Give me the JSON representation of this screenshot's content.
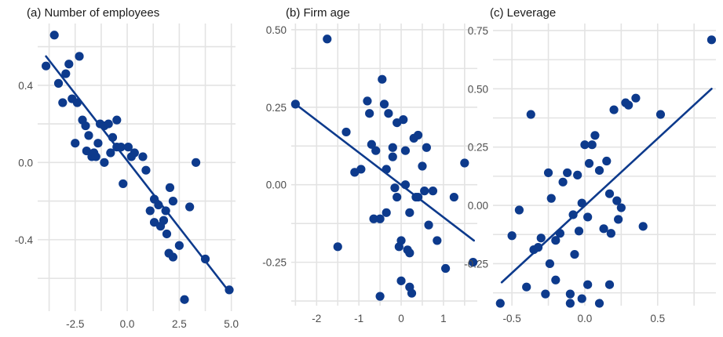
{
  "colors": {
    "point": "#0d3a8c",
    "line": "#0d3a8c",
    "grid": "#e3e3e3",
    "text": "#4d4d4d"
  },
  "chart_data": [
    {
      "type": "scatter",
      "title": "(a) Number of employees",
      "xlabel": "",
      "ylabel": "",
      "xlim": [
        -4.3,
        5.2
      ],
      "ylim": [
        -0.77,
        0.72
      ],
      "xticks": [
        -2.5,
        0.0,
        2.5,
        5.0
      ],
      "xtick_labels": [
        "-2.5",
        "0.0",
        "2.5",
        "5.0"
      ],
      "yticks": [
        0.4,
        0.0,
        -0.4
      ],
      "ytick_labels": [
        "0.4",
        "0.0",
        "-0.4"
      ],
      "grid": true,
      "trend_line": {
        "x": [
          -3.9,
          4.9
        ],
        "y": [
          0.55,
          -0.67
        ]
      },
      "points": [
        {
          "x": -3.9,
          "y": 0.5
        },
        {
          "x": -3.5,
          "y": 0.66
        },
        {
          "x": -3.3,
          "y": 0.41
        },
        {
          "x": -3.1,
          "y": 0.31
        },
        {
          "x": -2.95,
          "y": 0.46
        },
        {
          "x": -2.8,
          "y": 0.51
        },
        {
          "x": -2.65,
          "y": 0.33
        },
        {
          "x": -2.5,
          "y": 0.1
        },
        {
          "x": -2.4,
          "y": 0.31
        },
        {
          "x": -2.3,
          "y": 0.55
        },
        {
          "x": -2.15,
          "y": 0.22
        },
        {
          "x": -2.0,
          "y": 0.19
        },
        {
          "x": -1.95,
          "y": 0.06
        },
        {
          "x": -1.85,
          "y": 0.14
        },
        {
          "x": -1.7,
          "y": 0.03
        },
        {
          "x": -1.6,
          "y": 0.05
        },
        {
          "x": -1.5,
          "y": 0.03
        },
        {
          "x": -1.4,
          "y": 0.1
        },
        {
          "x": -1.3,
          "y": 0.2
        },
        {
          "x": -1.1,
          "y": 0.19
        },
        {
          "x": -1.1,
          "y": 0.0
        },
        {
          "x": -0.9,
          "y": 0.2
        },
        {
          "x": -0.8,
          "y": 0.05
        },
        {
          "x": -0.7,
          "y": 0.13
        },
        {
          "x": -0.5,
          "y": 0.22
        },
        {
          "x": -0.5,
          "y": 0.08
        },
        {
          "x": -0.3,
          "y": 0.08
        },
        {
          "x": -0.2,
          "y": -0.11
        },
        {
          "x": 0.05,
          "y": 0.08
        },
        {
          "x": 0.2,
          "y": 0.03
        },
        {
          "x": 0.35,
          "y": 0.05
        },
        {
          "x": 0.75,
          "y": 0.03
        },
        {
          "x": 0.9,
          "y": -0.04
        },
        {
          "x": 1.1,
          "y": -0.25
        },
        {
          "x": 1.3,
          "y": -0.19
        },
        {
          "x": 1.3,
          "y": -0.31
        },
        {
          "x": 1.5,
          "y": -0.22
        },
        {
          "x": 1.6,
          "y": -0.33
        },
        {
          "x": 1.75,
          "y": -0.3
        },
        {
          "x": 1.85,
          "y": -0.25
        },
        {
          "x": 1.9,
          "y": -0.37
        },
        {
          "x": 2.05,
          "y": -0.13
        },
        {
          "x": 2.0,
          "y": -0.47
        },
        {
          "x": 2.2,
          "y": -0.2
        },
        {
          "x": 2.2,
          "y": -0.49
        },
        {
          "x": 2.5,
          "y": -0.43
        },
        {
          "x": 2.75,
          "y": -0.71
        },
        {
          "x": 3.0,
          "y": -0.23
        },
        {
          "x": 3.3,
          "y": 0.0
        },
        {
          "x": 3.75,
          "y": -0.5
        },
        {
          "x": 4.9,
          "y": -0.66
        }
      ]
    },
    {
      "type": "scatter",
      "title": "(b) Firm age",
      "xlabel": "",
      "ylabel": "",
      "xlim": [
        -2.6,
        1.8
      ],
      "ylim": [
        -0.39,
        0.52
      ],
      "xticks": [
        -2,
        -1,
        0,
        1
      ],
      "xtick_labels": [
        "-2",
        "-1",
        "0",
        "1"
      ],
      "yticks": [
        0.5,
        0.25,
        0.0,
        -0.25
      ],
      "ytick_labels": [
        "0.50",
        "0.25",
        "0.00",
        "-0.25"
      ],
      "grid": true,
      "trend_line": {
        "x": [
          -2.5,
          1.72
        ],
        "y": [
          0.26,
          -0.18
        ]
      },
      "points": [
        {
          "x": -2.5,
          "y": 0.26
        },
        {
          "x": -1.75,
          "y": 0.47
        },
        {
          "x": -1.5,
          "y": -0.2
        },
        {
          "x": -1.3,
          "y": 0.17
        },
        {
          "x": -1.1,
          "y": 0.04
        },
        {
          "x": -0.95,
          "y": 0.05
        },
        {
          "x": -0.8,
          "y": 0.27
        },
        {
          "x": -0.75,
          "y": 0.23
        },
        {
          "x": -0.7,
          "y": 0.13
        },
        {
          "x": -0.65,
          "y": -0.11
        },
        {
          "x": -0.6,
          "y": 0.11
        },
        {
          "x": -0.5,
          "y": -0.11
        },
        {
          "x": -0.45,
          "y": 0.34
        },
        {
          "x": -0.4,
          "y": 0.26
        },
        {
          "x": -0.35,
          "y": 0.05
        },
        {
          "x": -0.3,
          "y": 0.23
        },
        {
          "x": -0.35,
          "y": -0.09
        },
        {
          "x": -0.2,
          "y": 0.09
        },
        {
          "x": -0.1,
          "y": 0.2
        },
        {
          "x": -0.15,
          "y": -0.01
        },
        {
          "x": -0.1,
          "y": -0.04
        },
        {
          "x": -0.05,
          "y": -0.2
        },
        {
          "x": 0.0,
          "y": -0.18
        },
        {
          "x": 0.0,
          "y": -0.31
        },
        {
          "x": 0.05,
          "y": 0.21
        },
        {
          "x": 0.1,
          "y": 0.11
        },
        {
          "x": 0.1,
          "y": 0.0
        },
        {
          "x": 0.15,
          "y": -0.21
        },
        {
          "x": 0.2,
          "y": -0.09
        },
        {
          "x": 0.2,
          "y": -0.22
        },
        {
          "x": 0.2,
          "y": -0.33
        },
        {
          "x": 0.25,
          "y": -0.35
        },
        {
          "x": 0.3,
          "y": 0.15
        },
        {
          "x": 0.35,
          "y": -0.04
        },
        {
          "x": 0.4,
          "y": 0.16
        },
        {
          "x": 0.4,
          "y": -0.04
        },
        {
          "x": 0.5,
          "y": 0.06
        },
        {
          "x": 0.55,
          "y": -0.02
        },
        {
          "x": 0.6,
          "y": 0.12
        },
        {
          "x": 0.65,
          "y": -0.13
        },
        {
          "x": 0.75,
          "y": -0.02
        },
        {
          "x": 0.85,
          "y": -0.18
        },
        {
          "x": 1.05,
          "y": -0.27
        },
        {
          "x": 1.25,
          "y": -0.04
        },
        {
          "x": 1.5,
          "y": 0.07
        },
        {
          "x": 1.7,
          "y": -0.25
        },
        {
          "x": -0.5,
          "y": -0.36
        },
        {
          "x": -0.2,
          "y": 0.12
        }
      ]
    },
    {
      "type": "scatter",
      "title": "(c) Leverage",
      "xlabel": "",
      "ylabel": "",
      "xlim": [
        -0.63,
        0.9
      ],
      "ylim": [
        -0.43,
        0.78
      ],
      "xticks": [
        -0.5,
        0.0,
        0.5
      ],
      "xtick_labels": [
        "-0.5",
        "0.0",
        "0.5"
      ],
      "yticks": [
        0.75,
        0.5,
        0.25,
        0.0,
        -0.25
      ],
      "ytick_labels": [
        "0.75",
        "0.50",
        "0.25",
        "0.00",
        "-0.25"
      ],
      "grid": true,
      "trend_line": {
        "x": [
          -0.57,
          0.87
        ],
        "y": [
          -0.33,
          0.5
        ]
      },
      "points": [
        {
          "x": -0.58,
          "y": -0.42
        },
        {
          "x": -0.5,
          "y": -0.13
        },
        {
          "x": -0.45,
          "y": -0.02
        },
        {
          "x": -0.4,
          "y": -0.35
        },
        {
          "x": -0.37,
          "y": 0.39
        },
        {
          "x": -0.35,
          "y": -0.19
        },
        {
          "x": -0.32,
          "y": -0.18
        },
        {
          "x": -0.3,
          "y": -0.14
        },
        {
          "x": -0.27,
          "y": -0.38
        },
        {
          "x": -0.25,
          "y": 0.14
        },
        {
          "x": -0.24,
          "y": -0.25
        },
        {
          "x": -0.23,
          "y": 0.03
        },
        {
          "x": -0.2,
          "y": -0.32
        },
        {
          "x": -0.2,
          "y": -0.15
        },
        {
          "x": -0.17,
          "y": -0.12
        },
        {
          "x": -0.15,
          "y": 0.1
        },
        {
          "x": -0.12,
          "y": 0.14
        },
        {
          "x": -0.1,
          "y": -0.38
        },
        {
          "x": -0.1,
          "y": -0.42
        },
        {
          "x": -0.08,
          "y": -0.04
        },
        {
          "x": -0.07,
          "y": -0.21
        },
        {
          "x": -0.05,
          "y": 0.13
        },
        {
          "x": -0.04,
          "y": -0.11
        },
        {
          "x": -0.02,
          "y": 0.01
        },
        {
          "x": -0.02,
          "y": -0.4
        },
        {
          "x": 0.0,
          "y": 0.26
        },
        {
          "x": 0.02,
          "y": -0.05
        },
        {
          "x": 0.03,
          "y": 0.18
        },
        {
          "x": 0.05,
          "y": 0.26
        },
        {
          "x": 0.07,
          "y": 0.3
        },
        {
          "x": 0.1,
          "y": -0.42
        },
        {
          "x": 0.1,
          "y": 0.15
        },
        {
          "x": 0.13,
          "y": -0.1
        },
        {
          "x": 0.15,
          "y": 0.19
        },
        {
          "x": 0.17,
          "y": 0.05
        },
        {
          "x": 0.18,
          "y": -0.12
        },
        {
          "x": 0.2,
          "y": 0.41
        },
        {
          "x": 0.22,
          "y": 0.02
        },
        {
          "x": 0.23,
          "y": -0.06
        },
        {
          "x": 0.25,
          "y": -0.01
        },
        {
          "x": 0.28,
          "y": 0.44
        },
        {
          "x": 0.3,
          "y": 0.43
        },
        {
          "x": 0.35,
          "y": 0.46
        },
        {
          "x": 0.4,
          "y": -0.09
        },
        {
          "x": 0.52,
          "y": 0.39
        },
        {
          "x": 0.87,
          "y": 0.71
        },
        {
          "x": 0.02,
          "y": -0.34
        },
        {
          "x": 0.17,
          "y": -0.34
        }
      ]
    }
  ]
}
